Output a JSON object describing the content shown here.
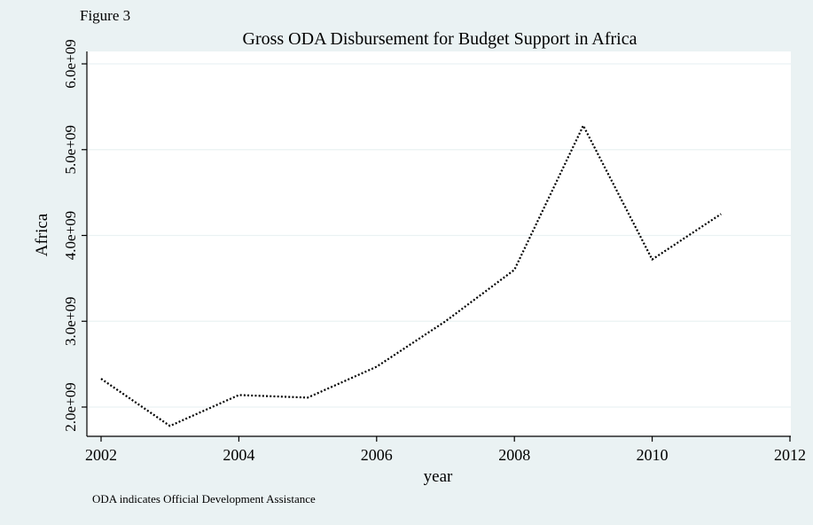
{
  "figure_label": "Figure 3",
  "note": "ODA indicates Official Development Assistance",
  "colors": {
    "outer_background": "#eaf2f3",
    "plot_background": "#ffffff",
    "gridline": "#eaf2f3",
    "line": "#000000"
  },
  "chart_data": {
    "type": "line",
    "title": "Gross ODA Disbursement for Budget Support in Africa",
    "xlabel": "year",
    "ylabel": "Africa",
    "xlim": [
      2002,
      2012
    ],
    "ylim": [
      1700000000.0,
      6150000000.0
    ],
    "grid": true,
    "line_style": "dotted",
    "x_ticks": [
      2002,
      2004,
      2006,
      2008,
      2010,
      2012
    ],
    "x_tick_labels": [
      "2002",
      "2004",
      "2006",
      "2008",
      "2010",
      "2012"
    ],
    "y_ticks": [
      2000000000.0,
      3000000000.0,
      4000000000.0,
      5000000000.0,
      6000000000.0
    ],
    "y_tick_labels": [
      "2.0e+09",
      "3.0e+09",
      "4.0e+09",
      "5.0e+09",
      "6.0e+09"
    ],
    "series": [
      {
        "x": [
          2002,
          2003,
          2004,
          2005,
          2006,
          2007,
          2008,
          2009,
          2010,
          2011
        ],
        "values": [
          2330000000.0,
          1780000000.0,
          2140000000.0,
          2110000000.0,
          2470000000.0,
          3000000000.0,
          3600000000.0,
          5280000000.0,
          3720000000.0,
          4250000000.0
        ]
      }
    ]
  }
}
